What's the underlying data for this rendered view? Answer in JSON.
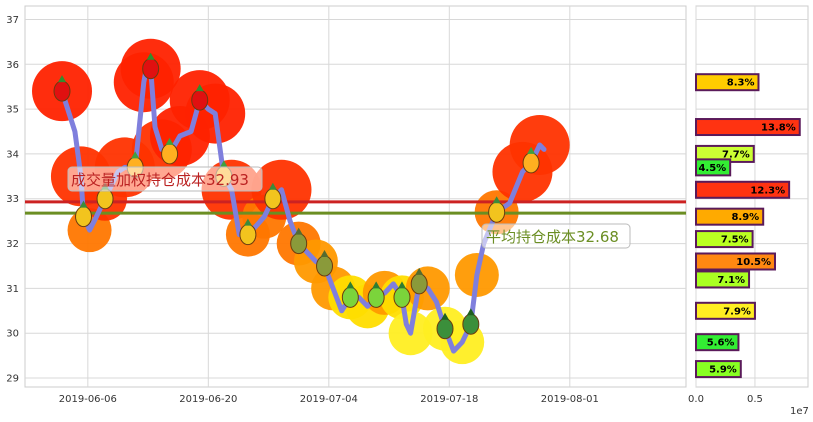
{
  "chart_data": [
    {
      "type": "line",
      "x_tick_labels": [
        "2019-06-06",
        "2019-06-20",
        "2019-07-04",
        "2019-07-18",
        "2019-08-01"
      ],
      "x_tick_days": [
        6,
        20,
        34,
        48,
        62
      ],
      "ylim": [
        28.8,
        37.3
      ],
      "y_ticks": [
        29,
        30,
        31,
        32,
        33,
        34,
        35,
        36,
        37
      ],
      "grid": true,
      "series": [
        {
          "points": [
            [
              3.0,
              35.4
            ],
            [
              4.5,
              34.5
            ],
            [
              5.2,
              33.5
            ],
            [
              5.5,
              32.6
            ],
            [
              6.2,
              32.3
            ],
            [
              7.0,
              32.6
            ],
            [
              8.0,
              33.0
            ],
            [
              9.5,
              33.6
            ],
            [
              10.3,
              33.7
            ],
            [
              11.5,
              33.7
            ],
            [
              12.5,
              35.6
            ],
            [
              12.9,
              36.0
            ],
            [
              13.3,
              35.9
            ],
            [
              13.8,
              34.6
            ],
            [
              14.6,
              34.1
            ],
            [
              15.5,
              34.0
            ],
            [
              16.7,
              34.4
            ],
            [
              18.0,
              34.5
            ],
            [
              19.0,
              35.2
            ],
            [
              20.0,
              35.0
            ],
            [
              20.8,
              34.9
            ],
            [
              21.8,
              33.5
            ],
            [
              22.7,
              33.2
            ],
            [
              23.6,
              32.2
            ],
            [
              24.6,
              32.2
            ],
            [
              25.6,
              32.4
            ],
            [
              26.5,
              32.6
            ],
            [
              27.5,
              33.0
            ],
            [
              28.5,
              33.2
            ],
            [
              29.5,
              32.5
            ],
            [
              30.5,
              32.0
            ],
            [
              31.5,
              31.8
            ],
            [
              32.5,
              31.6
            ],
            [
              33.5,
              31.5
            ],
            [
              34.5,
              31.0
            ],
            [
              35.5,
              30.5
            ],
            [
              36.5,
              30.8
            ],
            [
              37.5,
              30.8
            ],
            [
              38.5,
              30.6
            ],
            [
              39.5,
              30.8
            ],
            [
              40.5,
              30.9
            ],
            [
              41.5,
              31.1
            ],
            [
              42.5,
              30.8
            ],
            [
              43.0,
              30.2
            ],
            [
              43.5,
              30.0
            ],
            [
              44.5,
              31.1
            ],
            [
              45.5,
              31.0
            ],
            [
              46.5,
              30.7
            ],
            [
              47.5,
              30.1
            ],
            [
              48.5,
              29.6
            ],
            [
              49.5,
              29.8
            ],
            [
              50.5,
              30.2
            ],
            [
              51.2,
              31.3
            ],
            [
              52.0,
              32.0
            ],
            [
              53.5,
              32.7
            ],
            [
              55.0,
              32.9
            ],
            [
              56.5,
              33.6
            ],
            [
              57.5,
              33.8
            ],
            [
              58.5,
              34.2
            ],
            [
              59.0,
              34.1
            ]
          ]
        }
      ],
      "horizontal_lines": [
        {
          "value": 32.93,
          "color": "#cc2222",
          "label": "成交量加权持仓成本32.93",
          "label_color": "#bb2222"
        },
        {
          "value": 32.68,
          "color": "#6b8e23",
          "label": "平均持仓成本32.68",
          "label_color": "#6b8e23"
        }
      ]
    },
    {
      "type": "bar",
      "orientation": "horizontal",
      "x_tick_labels": [
        "0.0",
        "0.5"
      ],
      "x_ticks": [
        0,
        0.5
      ],
      "xlim": [
        0,
        0.95
      ],
      "offset_label": "1e7",
      "bars": [
        {
          "price": 35.6,
          "value": 0.53,
          "label": "8.3%",
          "color": "#ffcc00"
        },
        {
          "price": 34.6,
          "value": 0.88,
          "label": "13.8%",
          "color": "#ff3311"
        },
        {
          "price": 34.0,
          "value": 0.49,
          "label": "7.7%",
          "color": "#ccff33"
        },
        {
          "price": 33.7,
          "value": 0.29,
          "label": "4.5%",
          "color": "#33ee33"
        },
        {
          "price": 33.2,
          "value": 0.79,
          "label": "12.3%",
          "color": "#ff3311"
        },
        {
          "price": 32.6,
          "value": 0.57,
          "label": "8.9%",
          "color": "#ffaa00"
        },
        {
          "price": 32.1,
          "value": 0.48,
          "label": "7.5%",
          "color": "#bbff22"
        },
        {
          "price": 31.6,
          "value": 0.67,
          "label": "10.5%",
          "color": "#ff8811"
        },
        {
          "price": 31.2,
          "value": 0.45,
          "label": "7.1%",
          "color": "#aaff22"
        },
        {
          "price": 30.5,
          "value": 0.5,
          "label": "7.9%",
          "color": "#ffee22"
        },
        {
          "price": 29.8,
          "value": 0.36,
          "label": "5.6%",
          "color": "#33ee33"
        },
        {
          "price": 29.2,
          "value": 0.38,
          "label": "5.9%",
          "color": "#88ff22"
        }
      ]
    }
  ]
}
